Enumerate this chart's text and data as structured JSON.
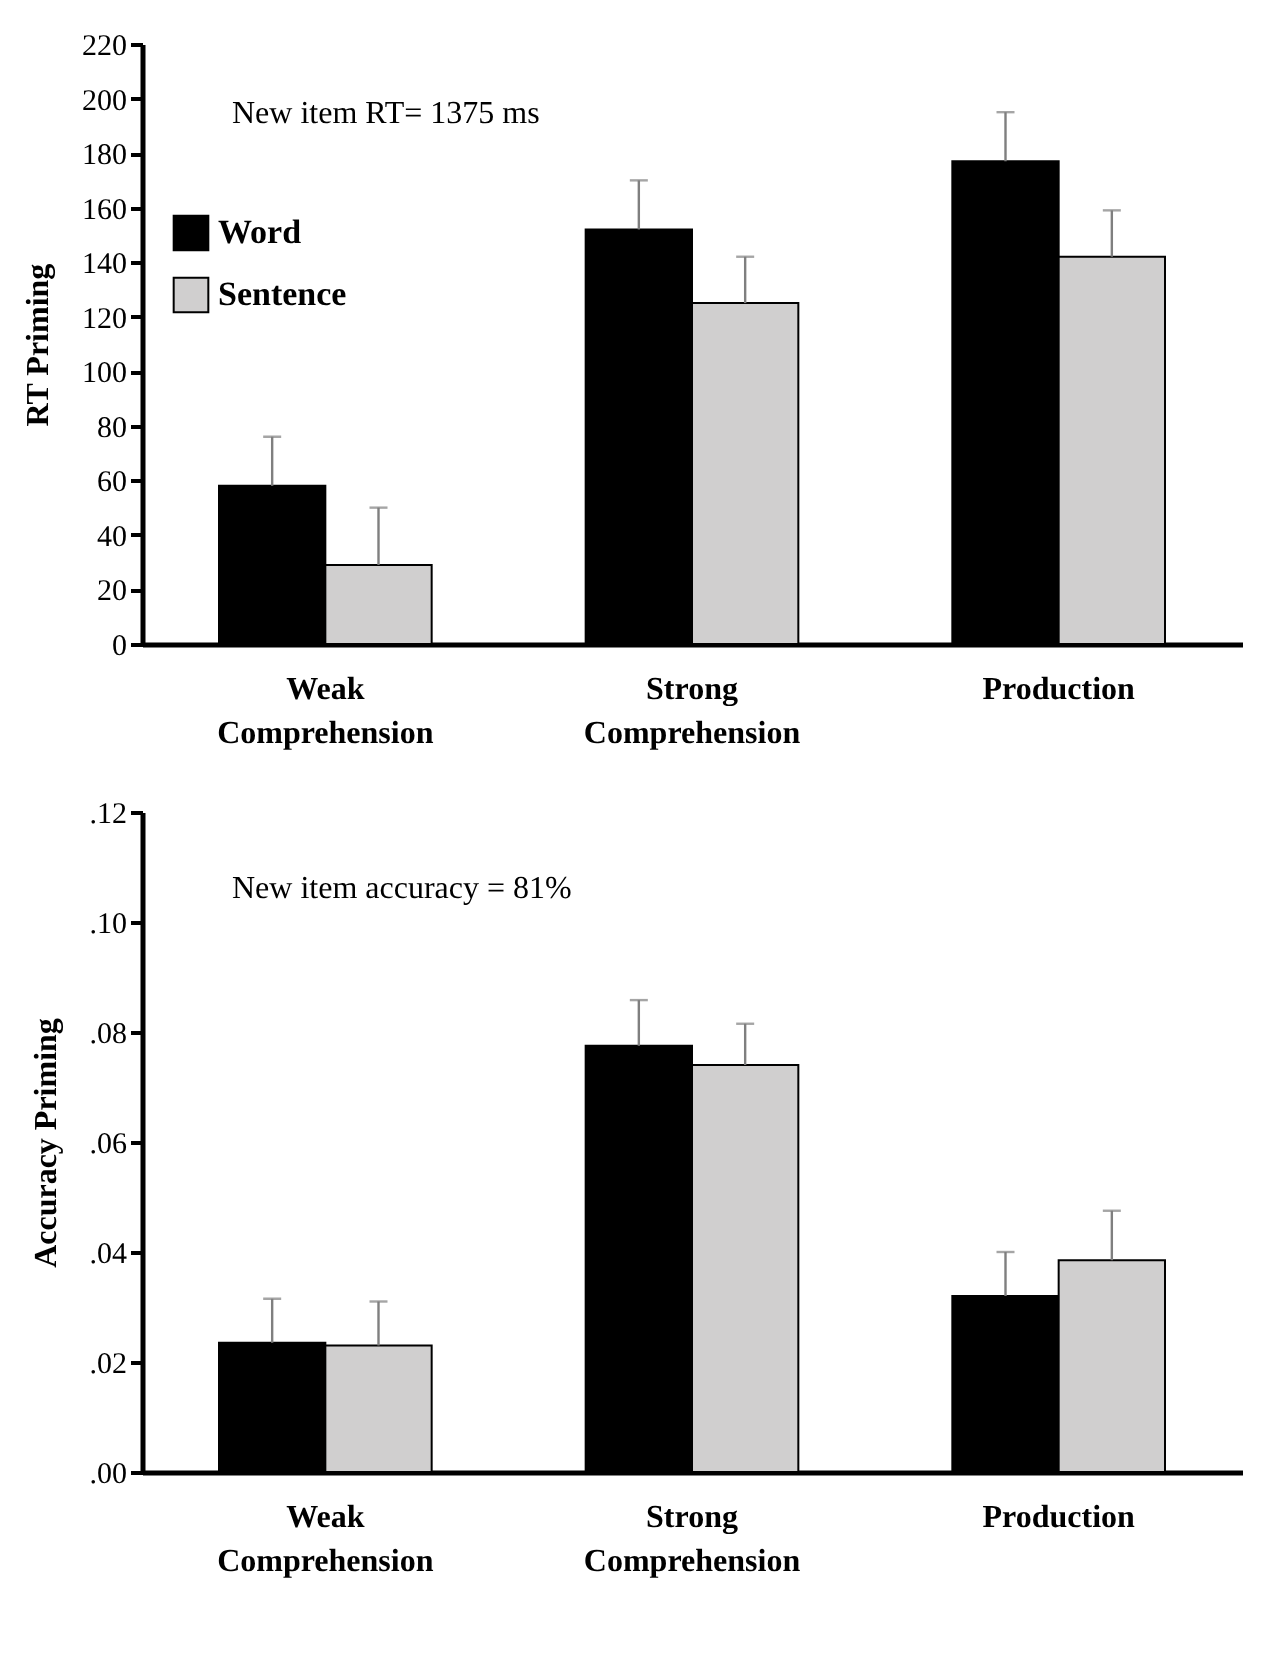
{
  "chart_data": [
    {
      "type": "bar",
      "ylabel": "RT Priming",
      "categories": [
        "Weak Comprehension",
        "Strong Comprehension",
        "Production"
      ],
      "series": [
        {
          "name": "Word",
          "color": "#000000",
          "values": [
            58,
            152,
            177
          ],
          "errors": [
            [
              58,
              76
            ],
            [
              152,
              170
            ],
            [
              177,
              195
            ]
          ]
        },
        {
          "name": "Sentence",
          "color": "#d0cfcf",
          "values": [
            29,
            125,
            142
          ],
          "errors": [
            [
              29,
              50
            ],
            [
              125,
              142
            ],
            [
              142,
              159
            ]
          ]
        }
      ],
      "ylim": [
        0,
        220
      ],
      "yticks": [
        0,
        20,
        40,
        60,
        80,
        100,
        120,
        140,
        160,
        180,
        200,
        220
      ],
      "annotations": [
        "New item RT= 1375 ms"
      ],
      "legend": "top left",
      "grid": false
    },
    {
      "type": "bar",
      "ylabel": "Accuracy Priming",
      "categories": [
        "Weak Comprehension",
        "Strong Comprehension",
        "Production"
      ],
      "series": [
        {
          "name": "Word",
          "color": "#000000",
          "values": [
            0.0235,
            0.0775,
            0.032
          ],
          "errors": [
            [
              0.0235,
              0.0315
            ],
            [
              0.0775,
              0.0858
            ],
            [
              0.032,
              0.04
            ]
          ]
        },
        {
          "name": "Sentence",
          "color": "#d0cfcf",
          "values": [
            0.023,
            0.074,
            0.0385
          ],
          "errors": [
            [
              0.023,
              0.031
            ],
            [
              0.074,
              0.0815
            ],
            [
              0.0385,
              0.0475
            ]
          ]
        }
      ],
      "ylim": [
        0,
        0.12
      ],
      "yticks": [
        {
          "value": 0,
          "label": ".00"
        },
        {
          "value": 0.02,
          "label": ".02"
        },
        {
          "value": 0.04,
          "label": ".04"
        },
        {
          "value": 0.06,
          "label": ".06"
        },
        {
          "value": 0.08,
          "label": ".08"
        },
        {
          "value": 0.1,
          "label": ".10"
        },
        {
          "value": 0.12,
          "label": ".12"
        }
      ],
      "annotations": [
        "New item accuracy = 81%"
      ],
      "legend": false,
      "grid": false
    }
  ]
}
